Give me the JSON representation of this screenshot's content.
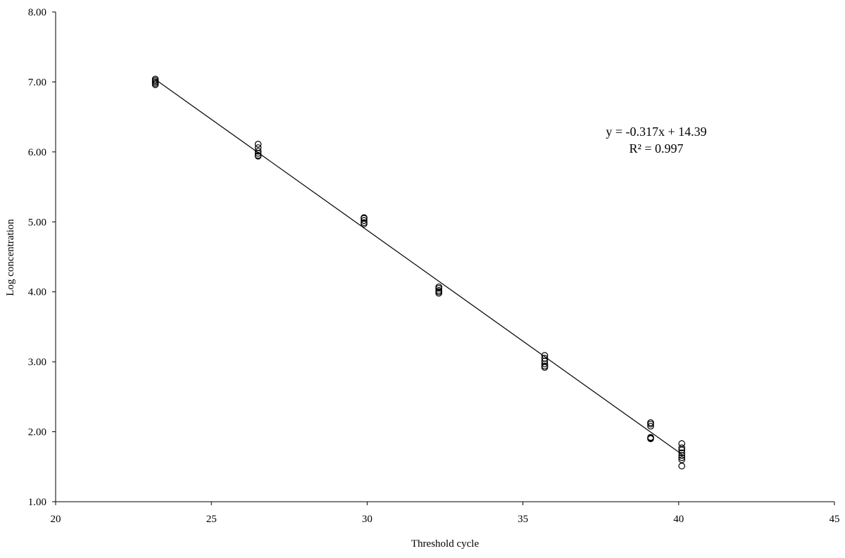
{
  "chart_data": {
    "type": "scatter",
    "title": "",
    "xlabel": "Threshold  cycle",
    "ylabel": "Log  concentration",
    "xlim": [
      20,
      45
    ],
    "ylim": [
      1.0,
      8.0
    ],
    "x_ticks": [
      "20",
      "25",
      "30",
      "35",
      "40",
      "45"
    ],
    "y_ticks": [
      "1.00",
      "2.00",
      "3.00",
      "4.00",
      "5.00",
      "6.00",
      "7.00",
      "8.00"
    ],
    "grid": false,
    "legend": "none",
    "marker": "open-circle",
    "series": [
      {
        "points": [
          {
            "x": 23.2,
            "y": 7.04
          },
          {
            "x": 23.2,
            "y": 7.02
          },
          {
            "x": 23.2,
            "y": 7.0
          },
          {
            "x": 23.2,
            "y": 6.98
          },
          {
            "x": 23.2,
            "y": 6.96
          },
          {
            "x": 26.5,
            "y": 6.11
          },
          {
            "x": 26.5,
            "y": 6.06
          },
          {
            "x": 26.5,
            "y": 6.01
          },
          {
            "x": 26.5,
            "y": 5.98
          },
          {
            "x": 26.5,
            "y": 5.95
          },
          {
            "x": 26.5,
            "y": 5.94
          },
          {
            "x": 29.9,
            "y": 5.06
          },
          {
            "x": 29.9,
            "y": 5.05
          },
          {
            "x": 29.9,
            "y": 5.02
          },
          {
            "x": 29.9,
            "y": 4.99
          },
          {
            "x": 29.9,
            "y": 4.97
          },
          {
            "x": 32.3,
            "y": 4.07
          },
          {
            "x": 32.3,
            "y": 4.05
          },
          {
            "x": 32.3,
            "y": 4.02
          },
          {
            "x": 32.3,
            "y": 4.0
          },
          {
            "x": 32.3,
            "y": 3.98
          },
          {
            "x": 35.7,
            "y": 3.09
          },
          {
            "x": 35.7,
            "y": 3.05
          },
          {
            "x": 35.7,
            "y": 3.01
          },
          {
            "x": 35.7,
            "y": 2.97
          },
          {
            "x": 35.7,
            "y": 2.94
          },
          {
            "x": 35.7,
            "y": 2.92
          },
          {
            "x": 39.1,
            "y": 2.13
          },
          {
            "x": 39.1,
            "y": 2.11
          },
          {
            "x": 39.1,
            "y": 2.08
          },
          {
            "x": 39.1,
            "y": 1.92
          },
          {
            "x": 39.1,
            "y": 1.91
          },
          {
            "x": 39.1,
            "y": 1.9
          },
          {
            "x": 40.1,
            "y": 1.83
          },
          {
            "x": 40.1,
            "y": 1.77
          },
          {
            "x": 40.1,
            "y": 1.74
          },
          {
            "x": 40.1,
            "y": 1.7
          },
          {
            "x": 40.1,
            "y": 1.66
          },
          {
            "x": 40.1,
            "y": 1.63
          },
          {
            "x": 40.1,
            "y": 1.6
          },
          {
            "x": 40.1,
            "y": 1.51
          }
        ]
      }
    ],
    "trendline": {
      "slope": -0.317,
      "intercept": 14.39,
      "x_range": [
        23.2,
        40.1
      ]
    },
    "annotations": {
      "equation": "y = -0.317x + 14.39",
      "r_squared": "R² = 0.997"
    }
  }
}
